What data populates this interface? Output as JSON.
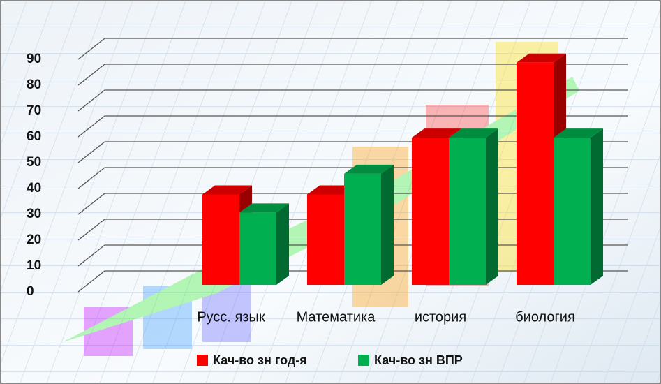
{
  "chart_data": {
    "type": "bar",
    "categories": [
      "Русс. язык",
      "Математика",
      "история",
      "биология"
    ],
    "series": [
      {
        "name": "Кач-во зн год-я",
        "color": "#ff0000",
        "values": [
          35,
          35,
          57,
          86
        ]
      },
      {
        "name": "Кач-во зн ВПР",
        "color": "#00b050",
        "values": [
          28,
          43,
          57,
          57
        ]
      }
    ],
    "ylim": [
      0,
      90
    ],
    "yticks": [
      0,
      10,
      20,
      30,
      40,
      50,
      60,
      70,
      80,
      90
    ],
    "grid": true
  }
}
